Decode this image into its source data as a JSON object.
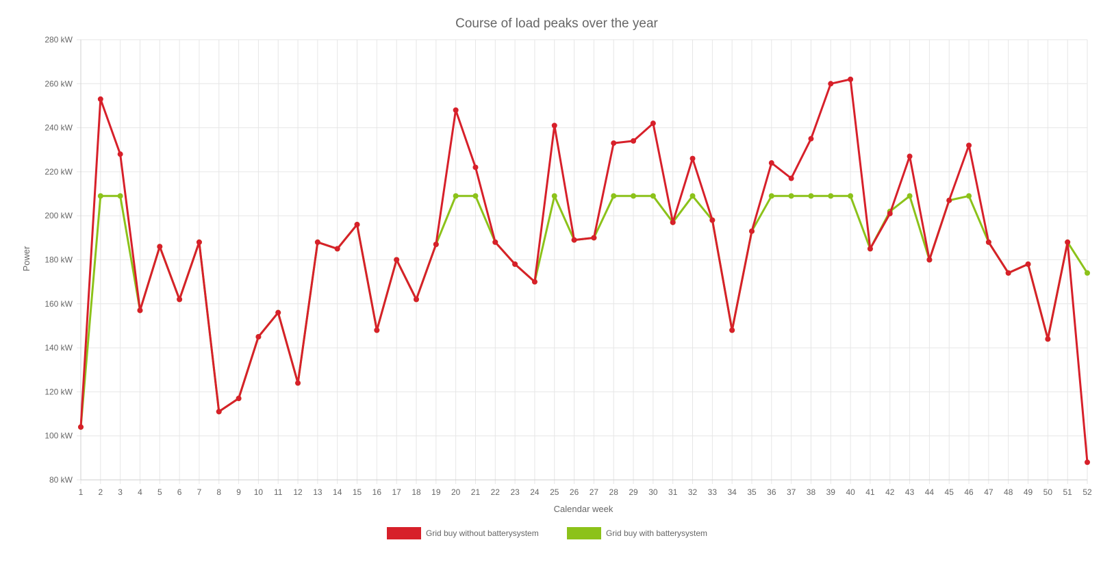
{
  "chart_data": {
    "type": "line",
    "title": "Course of load peaks over the year",
    "xlabel": "Calendar week",
    "ylabel": "Power",
    "x": [
      1,
      2,
      3,
      4,
      5,
      6,
      7,
      8,
      9,
      10,
      11,
      12,
      13,
      14,
      15,
      16,
      17,
      18,
      19,
      20,
      21,
      22,
      23,
      24,
      25,
      26,
      27,
      28,
      29,
      30,
      31,
      32,
      33,
      34,
      35,
      36,
      37,
      38,
      39,
      40,
      41,
      42,
      43,
      44,
      45,
      46,
      47,
      48,
      49,
      50,
      51,
      52
    ],
    "ylim": [
      80,
      280
    ],
    "yticks": [
      80,
      100,
      120,
      140,
      160,
      180,
      200,
      220,
      240,
      260,
      280
    ],
    "ytick_labels": [
      "80 kW",
      "100 kW",
      "120 kW",
      "140 kW",
      "160 kW",
      "180 kW",
      "200 kW",
      "220 kW",
      "240 kW",
      "260 kW",
      "280 kW"
    ],
    "legend_position": "bottom",
    "series": [
      {
        "name": "Grid buy without batterysystem",
        "color": "#d7202a",
        "values": [
          104,
          253,
          228,
          157,
          186,
          162,
          188,
          111,
          117,
          145,
          156,
          124,
          188,
          185,
          196,
          148,
          180,
          162,
          187,
          248,
          222,
          188,
          178,
          170,
          241,
          189,
          190,
          233,
          234,
          242,
          197,
          226,
          198,
          148,
          193,
          224,
          217,
          235,
          260,
          262,
          185,
          201,
          227,
          180,
          207,
          232,
          188,
          174,
          178,
          144,
          188,
          88
        ]
      },
      {
        "name": "Grid buy with batterysystem",
        "color": "#8cc21a",
        "values": [
          104,
          209,
          209,
          157,
          186,
          162,
          188,
          111,
          117,
          145,
          156,
          124,
          188,
          185,
          196,
          148,
          180,
          162,
          187,
          209,
          209,
          188,
          178,
          170,
          209,
          189,
          190,
          209,
          209,
          209,
          197,
          209,
          198,
          148,
          193,
          209,
          209,
          209,
          209,
          209,
          185,
          202,
          209,
          180,
          207,
          209,
          188,
          174,
          178,
          144,
          188,
          174
        ]
      }
    ]
  }
}
